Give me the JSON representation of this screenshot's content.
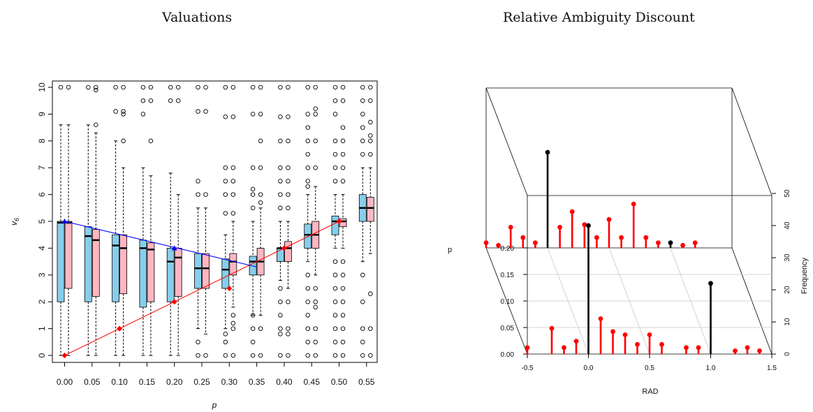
{
  "titles": {
    "left": "Valuations",
    "right": "Relative Ambiguity Discount"
  },
  "chart_data": [
    {
      "type": "box",
      "title": "Valuations",
      "xlabel": "p",
      "ylabel": "v6",
      "ylim": [
        0,
        10
      ],
      "categories": [
        "0.00",
        "0.05",
        "0.10",
        "0.15",
        "0.20",
        "0.25",
        "0.30",
        "0.35",
        "0.40",
        "0.45",
        "0.50",
        "0.55"
      ],
      "yticks": [
        "0",
        "1",
        "2",
        "3",
        "4",
        "5",
        "6",
        "7",
        "8",
        "9",
        "10"
      ],
      "colors": {
        "blue_box": "#87ceeb",
        "pink_box": "#ffb6c1",
        "blue_line": "#0000ff",
        "red_line": "#ff0000"
      },
      "series": [
        {
          "color": "#87ceeb",
          "boxes": [
            {
              "q1": 2.0,
              "median": 4.95,
              "q3": 5.0,
              "whisker_low": 0,
              "whisker_high": 8.6,
              "outliers": [
                10
              ]
            },
            {
              "q1": 2.0,
              "median": 4.45,
              "q3": 4.8,
              "whisker_low": 0,
              "whisker_high": 8.6,
              "outliers": [
                10
              ]
            },
            {
              "q1": 2.0,
              "median": 4.1,
              "q3": 4.5,
              "whisker_low": 0,
              "whisker_high": 8.0,
              "outliers": [
                9.1,
                10
              ]
            },
            {
              "q1": 1.8,
              "median": 4.0,
              "q3": 4.3,
              "whisker_low": 0,
              "whisker_high": 7.0,
              "outliers": [
                9.0,
                9.5,
                10
              ]
            },
            {
              "q1": 2.0,
              "median": 3.5,
              "q3": 4.0,
              "whisker_low": 0,
              "whisker_high": 6.8,
              "outliers": [
                9.5,
                10
              ]
            },
            {
              "q1": 2.5,
              "median": 3.25,
              "q3": 3.8,
              "whisker_low": 1.0,
              "whisker_high": 5.5,
              "outliers": [
                0,
                0.5,
                6.0,
                6.5,
                9.1,
                10
              ]
            },
            {
              "q1": 2.5,
              "median": 3.2,
              "q3": 3.6,
              "whisker_low": 1.0,
              "whisker_high": 4.5,
              "outliers": [
                0,
                0.5,
                0.8,
                5.3,
                6.0,
                6.5,
                7.0,
                8.9,
                10
              ]
            },
            {
              "q1": 3.0,
              "median": 3.5,
              "q3": 3.7,
              "whisker_low": 1.5,
              "whisker_high": 5.0,
              "outliers": [
                0,
                0.5,
                1.0,
                1.5,
                5.5,
                6.0,
                6.2,
                7.0,
                9.0,
                10
              ]
            },
            {
              "q1": 3.5,
              "median": 4.0,
              "q3": 4.0,
              "whisker_low": 2.8,
              "whisker_high": 5.0,
              "outliers": [
                0,
                0.8,
                1.0,
                1.5,
                2.0,
                2.5,
                5.5,
                6.0,
                6.5,
                7.0,
                8.0,
                8.9,
                10
              ]
            },
            {
              "q1": 4.0,
              "median": 4.5,
              "q3": 4.9,
              "whisker_low": 3.5,
              "whisker_high": 6.0,
              "outliers": [
                0,
                0.5,
                1.0,
                1.5,
                2.0,
                2.5,
                3.0,
                6.3,
                6.5,
                7.0,
                7.5,
                8.0,
                8.5,
                9.0,
                10
              ]
            },
            {
              "q1": 4.5,
              "median": 5.0,
              "q3": 5.2,
              "whisker_low": 4.0,
              "whisker_high": 6.0,
              "outliers": [
                0,
                0.5,
                1.0,
                1.5,
                2.0,
                2.5,
                3.0,
                3.5,
                6.5,
                7.0,
                7.5,
                8.0,
                9.0,
                9.5,
                10
              ]
            },
            {
              "q1": 5.0,
              "median": 5.5,
              "q3": 6.0,
              "whisker_low": 3.5,
              "whisker_high": 7.0,
              "outliers": [
                0,
                0.5,
                1.0,
                2.0,
                3.0,
                7.5,
                8.0,
                8.5,
                9.0,
                9.5,
                10
              ]
            }
          ]
        },
        {
          "color": "#ffb6c1",
          "boxes": [
            {
              "q1": 2.5,
              "median": 4.95,
              "q3": 5.0,
              "whisker_low": 0,
              "whisker_high": 8.6,
              "outliers": [
                10
              ]
            },
            {
              "q1": 2.2,
              "median": 4.3,
              "q3": 4.7,
              "whisker_low": 0,
              "whisker_high": 8.3,
              "outliers": [
                8.6,
                9.9,
                10
              ]
            },
            {
              "q1": 2.3,
              "median": 4.0,
              "q3": 4.5,
              "whisker_low": 0,
              "whisker_high": 7.0,
              "outliers": [
                8.0,
                9.0,
                9.1,
                10
              ]
            },
            {
              "q1": 2.0,
              "median": 3.95,
              "q3": 4.2,
              "whisker_low": 0,
              "whisker_high": 6.7,
              "outliers": [
                8.0,
                9.5,
                10
              ]
            },
            {
              "q1": 2.2,
              "median": 3.65,
              "q3": 4.0,
              "whisker_low": 0,
              "whisker_high": 6.0,
              "outliers": [
                9.5,
                10
              ]
            },
            {
              "q1": 2.5,
              "median": 3.25,
              "q3": 3.8,
              "whisker_low": 0.8,
              "whisker_high": 5.5,
              "outliers": [
                0,
                6.0,
                9.1,
                10
              ]
            },
            {
              "q1": 3.0,
              "median": 3.5,
              "q3": 3.8,
              "whisker_low": 1.8,
              "whisker_high": 5.0,
              "outliers": [
                0,
                1.0,
                1.2,
                1.5,
                5.3,
                6.0,
                6.5,
                7.0,
                8.9,
                10
              ]
            },
            {
              "q1": 3.0,
              "median": 3.5,
              "q3": 4.0,
              "whisker_low": 1.5,
              "whisker_high": 5.5,
              "outliers": [
                0,
                1.0,
                5.7,
                6.0,
                7.0,
                8.0,
                9.0,
                10
              ]
            },
            {
              "q1": 3.5,
              "median": 4.0,
              "q3": 4.25,
              "whisker_low": 2.5,
              "whisker_high": 5.0,
              "outliers": [
                0,
                0.8,
                1.0,
                2.0,
                5.5,
                6.0,
                6.5,
                7.0,
                8.0,
                8.9,
                10
              ]
            },
            {
              "q1": 4.0,
              "median": 4.5,
              "q3": 5.0,
              "whisker_low": 3.0,
              "whisker_high": 6.3,
              "outliers": [
                0,
                0.5,
                1.0,
                1.8,
                2.0,
                2.5,
                7.0,
                8.0,
                9.0,
                9.2,
                10
              ]
            },
            {
              "q1": 4.8,
              "median": 5.0,
              "q3": 5.1,
              "whisker_low": 4.0,
              "whisker_high": 6.0,
              "outliers": [
                0,
                0.5,
                1.0,
                1.5,
                2.0,
                2.5,
                3.0,
                3.5,
                6.5,
                7.0,
                7.5,
                8.0,
                8.5,
                9.5,
                10
              ]
            },
            {
              "q1": 5.0,
              "median": 5.5,
              "q3": 5.9,
              "whisker_low": 3.8,
              "whisker_high": 7.0,
              "outliers": [
                0,
                1.0,
                2.3,
                7.5,
                8.0,
                8.2,
                8.7,
                9.5,
                10
              ]
            }
          ]
        }
      ],
      "lines": [
        {
          "color": "#0000ff",
          "points": [
            [
              0.0,
              5.0
            ],
            [
              0.35,
              3.3
            ]
          ],
          "markers": [
            [
              0.0,
              5.0
            ],
            [
              0.2,
              4.0
            ]
          ]
        },
        {
          "color": "#ff0000",
          "points": [
            [
              0.0,
              0.0
            ],
            [
              0.5,
              5.0
            ]
          ],
          "markers": [
            [
              0.0,
              0.0
            ],
            [
              0.1,
              1.0
            ],
            [
              0.2,
              2.0
            ],
            [
              0.3,
              2.5
            ],
            [
              0.4,
              4.0
            ],
            [
              0.5,
              5.0
            ]
          ]
        }
      ]
    },
    {
      "type": "3d-histogram",
      "title": "Relative Ambiguity Discount",
      "xlabel": "RAD",
      "ylabel": "p",
      "zlabel": "Frequency",
      "xticks": [
        "-0.5",
        "0.0",
        "0.5",
        "1.0",
        "1.5"
      ],
      "yticks": [
        "0.00",
        "0.05",
        "0.10",
        "0.15",
        "0.20"
      ],
      "zticks": [
        "0",
        "10",
        "20",
        "30",
        "40",
        "50"
      ],
      "xlim": [
        -0.5,
        1.5
      ],
      "ylim": [
        0,
        0.2
      ],
      "zlim": [
        0,
        50
      ],
      "back_slice_p": 0.2,
      "front_slice_p": 0.0,
      "front_slice": [
        {
          "x": -0.5,
          "f": 2,
          "color": "#ff0000"
        },
        {
          "x": -0.3,
          "f": 8,
          "color": "#ff0000"
        },
        {
          "x": -0.2,
          "f": 2,
          "color": "#ff0000"
        },
        {
          "x": -0.1,
          "f": 4,
          "color": "#ff0000"
        },
        {
          "x": 0.0,
          "f": 40,
          "color": "#000000"
        },
        {
          "x": 0.1,
          "f": 11,
          "color": "#ff0000"
        },
        {
          "x": 0.2,
          "f": 7,
          "color": "#ff0000"
        },
        {
          "x": 0.3,
          "f": 6,
          "color": "#ff0000"
        },
        {
          "x": 0.4,
          "f": 3,
          "color": "#ff0000"
        },
        {
          "x": 0.5,
          "f": 6,
          "color": "#ff0000"
        },
        {
          "x": 0.6,
          "f": 3,
          "color": "#ff0000"
        },
        {
          "x": 0.8,
          "f": 2,
          "color": "#ff0000"
        },
        {
          "x": 0.9,
          "f": 2,
          "color": "#ff0000"
        },
        {
          "x": 1.0,
          "f": 22,
          "color": "#000000"
        },
        {
          "x": 1.2,
          "f": 1,
          "color": "#ff0000"
        },
        {
          "x": 1.3,
          "f": 2,
          "color": "#ff0000"
        },
        {
          "x": 1.4,
          "f": 1,
          "color": "#ff0000"
        }
      ],
      "back_slice": [
        {
          "x": -0.5,
          "f": 2,
          "color": "#ff0000"
        },
        {
          "x": -0.4,
          "f": 1,
          "color": "#ff0000"
        },
        {
          "x": -0.3,
          "f": 8,
          "color": "#ff0000"
        },
        {
          "x": -0.2,
          "f": 4,
          "color": "#ff0000"
        },
        {
          "x": -0.1,
          "f": 2,
          "color": "#ff0000"
        },
        {
          "x": 0.0,
          "f": 37,
          "color": "#000000"
        },
        {
          "x": 0.1,
          "f": 8,
          "color": "#ff0000"
        },
        {
          "x": 0.2,
          "f": 14,
          "color": "#ff0000"
        },
        {
          "x": 0.3,
          "f": 9,
          "color": "#ff0000"
        },
        {
          "x": 0.4,
          "f": 4,
          "color": "#ff0000"
        },
        {
          "x": 0.5,
          "f": 11,
          "color": "#ff0000"
        },
        {
          "x": 0.6,
          "f": 4,
          "color": "#ff0000"
        },
        {
          "x": 0.7,
          "f": 17,
          "color": "#ff0000"
        },
        {
          "x": 0.8,
          "f": 4,
          "color": "#ff0000"
        },
        {
          "x": 0.9,
          "f": 2,
          "color": "#ff0000"
        },
        {
          "x": 1.0,
          "f": 2,
          "color": "#000000"
        },
        {
          "x": 1.1,
          "f": 1,
          "color": "#ff0000"
        },
        {
          "x": 1.2,
          "f": 2,
          "color": "#ff0000"
        }
      ]
    }
  ]
}
